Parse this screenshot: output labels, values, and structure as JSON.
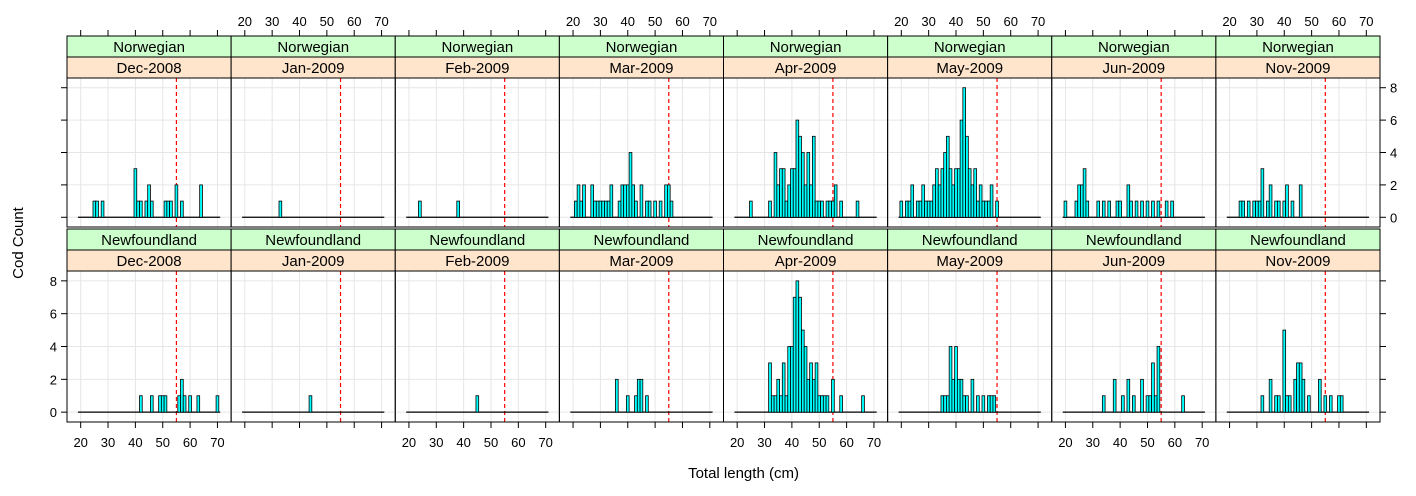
{
  "chart_data": {
    "type": "bar",
    "xlabel": "Total length (cm)",
    "ylabel": "Cod Count",
    "xlim": [
      15,
      75
    ],
    "ylim": [
      -0.6,
      8.6
    ],
    "xticks": [
      20,
      30,
      40,
      50,
      60,
      70
    ],
    "yticks": [
      0,
      2,
      4,
      6,
      8
    ],
    "reference_line_x": 55,
    "grid": true,
    "colors": {
      "bar": "#00ffff",
      "bar_outline": "#000000",
      "top_strip": "#ccffcc",
      "bottom_strip": "#ffe5cc",
      "ref_line": "#ff0000",
      "grid": "#e6e6e6"
    },
    "months": [
      "Dec-2008",
      "Jan-2009",
      "Feb-2009",
      "Mar-2009",
      "Apr-2009",
      "May-2009",
      "Jun-2009",
      "Nov-2009"
    ],
    "panels": [
      {
        "group": "Norwegian",
        "month": "Dec-2008",
        "x": [
          25,
          26,
          28,
          40,
          41,
          42,
          44,
          45,
          46,
          51,
          52,
          53,
          55,
          57,
          64
        ],
        "y": [
          1,
          1,
          1,
          3,
          1,
          1,
          1,
          2,
          1,
          1,
          1,
          1,
          2,
          1,
          2
        ]
      },
      {
        "group": "Norwegian",
        "month": "Jan-2009",
        "x": [
          33
        ],
        "y": [
          1
        ]
      },
      {
        "group": "Norwegian",
        "month": "Feb-2009",
        "x": [
          24,
          38
        ],
        "y": [
          1,
          1
        ]
      },
      {
        "group": "Norwegian",
        "month": "Mar-2009",
        "x": [
          21,
          22,
          23,
          24,
          27,
          28,
          29,
          30,
          31,
          32,
          33,
          34,
          37,
          38,
          39,
          40,
          41,
          42,
          43,
          45,
          47,
          48,
          50,
          52,
          54,
          55,
          56
        ],
        "y": [
          1,
          2,
          1,
          2,
          2,
          1,
          1,
          1,
          1,
          1,
          1,
          2,
          1,
          2,
          2,
          2,
          4,
          2,
          1,
          2,
          1,
          1,
          1,
          1,
          2,
          2,
          1
        ]
      },
      {
        "group": "Norwegian",
        "month": "Apr-2009",
        "x": [
          25,
          32,
          34,
          35,
          36,
          37,
          38,
          39,
          40,
          41,
          42,
          43,
          44,
          45,
          46,
          47,
          48,
          49,
          50,
          51,
          53,
          54,
          55,
          56,
          58,
          64
        ],
        "y": [
          1,
          1,
          4,
          2,
          3,
          3,
          1,
          2,
          3,
          3,
          6,
          5,
          4,
          2,
          4,
          2,
          5,
          1,
          1,
          1,
          1,
          1,
          1,
          2,
          1,
          1
        ]
      },
      {
        "group": "Norwegian",
        "month": "May-2009",
        "x": [
          20,
          22,
          23,
          24,
          26,
          27,
          28,
          29,
          30,
          31,
          32,
          33,
          34,
          35,
          36,
          37,
          38,
          39,
          40,
          41,
          42,
          43,
          44,
          45,
          46,
          47,
          48,
          49,
          50,
          51,
          52,
          53,
          55
        ],
        "y": [
          1,
          1,
          1,
          2,
          1,
          1,
          2,
          1,
          1,
          1,
          2,
          3,
          2,
          3,
          4,
          5,
          3,
          2,
          3,
          3,
          6,
          8,
          5,
          3,
          2,
          3,
          1,
          2,
          1,
          1,
          1,
          2,
          1
        ]
      },
      {
        "group": "Norwegian",
        "month": "Jun-2009",
        "x": [
          20,
          24,
          25,
          26,
          27,
          28,
          32,
          34,
          36,
          39,
          40,
          43,
          44,
          46,
          48,
          50,
          52,
          54,
          57,
          59
        ],
        "y": [
          1,
          1,
          2,
          2,
          3,
          1,
          1,
          1,
          1,
          1,
          1,
          2,
          1,
          1,
          1,
          1,
          1,
          1,
          1,
          1
        ]
      },
      {
        "group": "Norwegian",
        "month": "Nov-2009",
        "x": [
          24,
          25,
          27,
          29,
          30,
          31,
          32,
          34,
          35,
          37,
          38,
          40,
          41,
          43,
          46
        ],
        "y": [
          1,
          1,
          1,
          1,
          1,
          1,
          3,
          1,
          2,
          1,
          1,
          1,
          2,
          1,
          2
        ]
      },
      {
        "group": "Newfoundland",
        "month": "Dec-2008",
        "x": [
          42,
          46,
          49,
          50,
          51,
          56,
          57,
          58,
          60,
          63,
          70
        ],
        "y": [
          1,
          1,
          1,
          1,
          1,
          1,
          2,
          1,
          1,
          1,
          1
        ]
      },
      {
        "group": "Newfoundland",
        "month": "Jan-2009",
        "x": [
          44
        ],
        "y": [
          1
        ]
      },
      {
        "group": "Newfoundland",
        "month": "Feb-2009",
        "x": [
          45
        ],
        "y": [
          1
        ]
      },
      {
        "group": "Newfoundland",
        "month": "Mar-2009",
        "x": [
          36,
          40,
          43,
          44,
          45,
          47
        ],
        "y": [
          2,
          1,
          1,
          2,
          2,
          1
        ]
      },
      {
        "group": "Newfoundland",
        "month": "Apr-2009",
        "x": [
          32,
          33,
          34,
          35,
          36,
          37,
          38,
          39,
          40,
          41,
          42,
          43,
          44,
          45,
          46,
          47,
          48,
          49,
          50,
          51,
          52,
          53,
          55,
          58,
          66
        ],
        "y": [
          3,
          1,
          1,
          2,
          1,
          3,
          1,
          4,
          4,
          7,
          8,
          7,
          5,
          4,
          2,
          3,
          2,
          3,
          1,
          1,
          1,
          1,
          2,
          1,
          1
        ]
      },
      {
        "group": "Newfoundland",
        "month": "May-2009",
        "x": [
          35,
          36,
          37,
          38,
          39,
          40,
          41,
          42,
          43,
          44,
          46,
          48,
          50,
          52,
          53,
          54
        ],
        "y": [
          1,
          1,
          1,
          4,
          2,
          4,
          2,
          2,
          1,
          1,
          2,
          1,
          1,
          1,
          1,
          1
        ]
      },
      {
        "group": "Newfoundland",
        "month": "Jun-2009",
        "x": [
          34,
          38,
          41,
          43,
          45,
          48,
          50,
          51,
          52,
          53,
          54,
          63
        ],
        "y": [
          1,
          2,
          1,
          2,
          1,
          2,
          1,
          1,
          3,
          1,
          4,
          1
        ]
      },
      {
        "group": "Newfoundland",
        "month": "Nov-2009",
        "x": [
          32,
          35,
          37,
          38,
          40,
          41,
          42,
          44,
          45,
          46,
          47,
          49,
          53,
          55,
          57,
          60,
          61
        ],
        "y": [
          1,
          2,
          1,
          1,
          5,
          1,
          1,
          2,
          3,
          3,
          2,
          1,
          2,
          1,
          1,
          1,
          1
        ]
      }
    ]
  }
}
